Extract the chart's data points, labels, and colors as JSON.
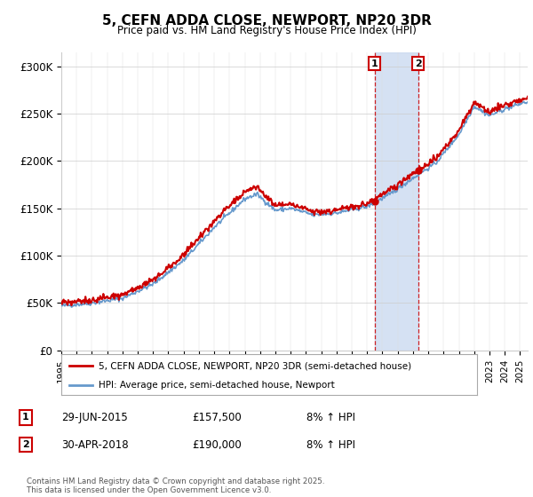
{
  "title": "5, CEFN ADDA CLOSE, NEWPORT, NP20 3DR",
  "subtitle": "Price paid vs. HM Land Registry's House Price Index (HPI)",
  "ylabel_ticks": [
    "£0",
    "£50K",
    "£100K",
    "£150K",
    "£200K",
    "£250K",
    "£300K"
  ],
  "ytick_values": [
    0,
    50000,
    100000,
    150000,
    200000,
    250000,
    300000
  ],
  "ylim": [
    0,
    315000
  ],
  "xlim_start": 1995.0,
  "xlim_end": 2025.5,
  "line1_color": "#cc0000",
  "line2_color": "#6699cc",
  "shade_color": "#c8d8f0",
  "legend_line1": "5, CEFN ADDA CLOSE, NEWPORT, NP20 3DR (semi-detached house)",
  "legend_line2": "HPI: Average price, semi-detached house, Newport",
  "marker1_date": 2015.49,
  "marker2_date": 2018.33,
  "marker1_price": 157500,
  "marker2_price": 190000,
  "table_row1": [
    "1",
    "29-JUN-2015",
    "£157,500",
    "8% ↑ HPI"
  ],
  "table_row2": [
    "2",
    "30-APR-2018",
    "£190,000",
    "8% ↑ HPI"
  ],
  "footer": "Contains HM Land Registry data © Crown copyright and database right 2025.\nThis data is licensed under the Open Government Licence v3.0.",
  "background_color": "#ffffff"
}
